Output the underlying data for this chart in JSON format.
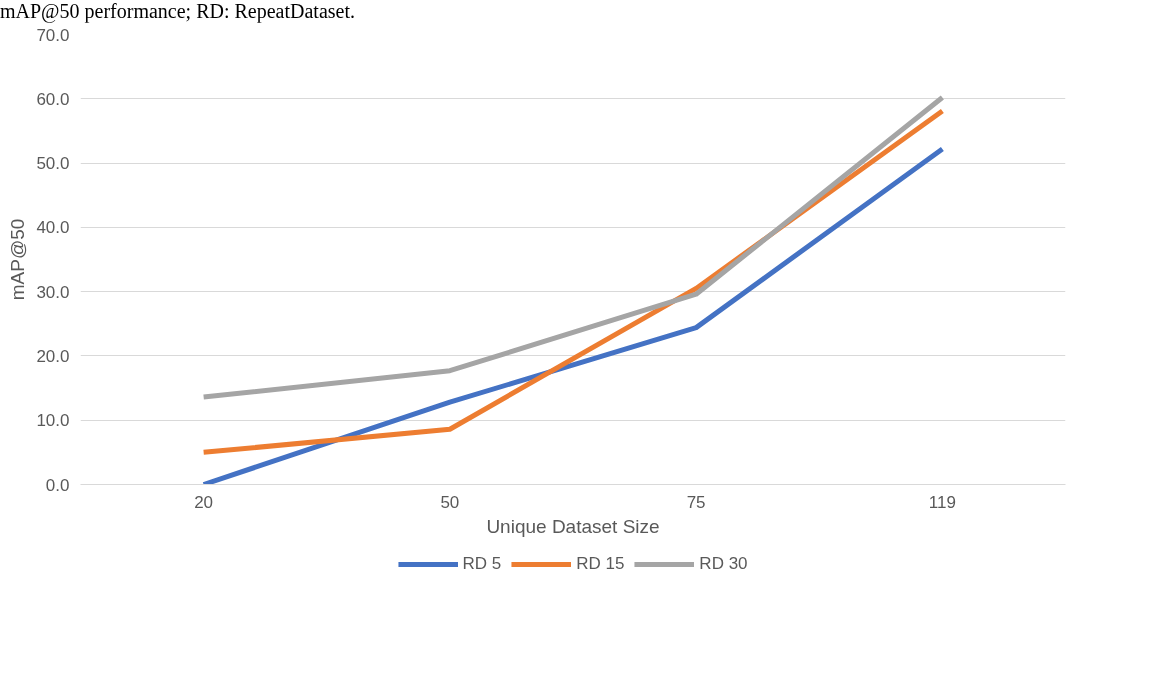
{
  "chart_data": {
    "type": "line",
    "xlabel": "Unique Dataset Size",
    "ylabel": "mAP@50",
    "categories": [
      "20",
      "50",
      "75",
      "119"
    ],
    "series": [
      {
        "name": "RD 5",
        "color": "#4472c4",
        "values": [
          0.0,
          12.8,
          24.4,
          52.2
        ]
      },
      {
        "name": "RD 15",
        "color": "#ed7d31",
        "values": [
          5.0,
          8.6,
          30.5,
          58.1
        ]
      },
      {
        "name": "RD 30",
        "color": "#a5a5a5",
        "values": [
          13.6,
          17.7,
          29.6,
          60.2
        ]
      }
    ],
    "ylim": [
      0,
      70
    ],
    "yticks": [
      {
        "value": 0,
        "label": "0.0"
      },
      {
        "value": 10,
        "label": "10.0"
      },
      {
        "value": 20,
        "label": "20.0"
      },
      {
        "value": 30,
        "label": "30.0"
      },
      {
        "value": 40,
        "label": "40.0"
      },
      {
        "value": 50,
        "label": "50.0"
      },
      {
        "value": 60,
        "label": "60.0"
      },
      {
        "value": 70,
        "label": "70.0"
      }
    ],
    "grid": "y",
    "legend": "bottom",
    "marker": "none",
    "line_style": "solid",
    "annotations": [
      "mAP@50 performance; RD: RepeatDataset."
    ]
  }
}
